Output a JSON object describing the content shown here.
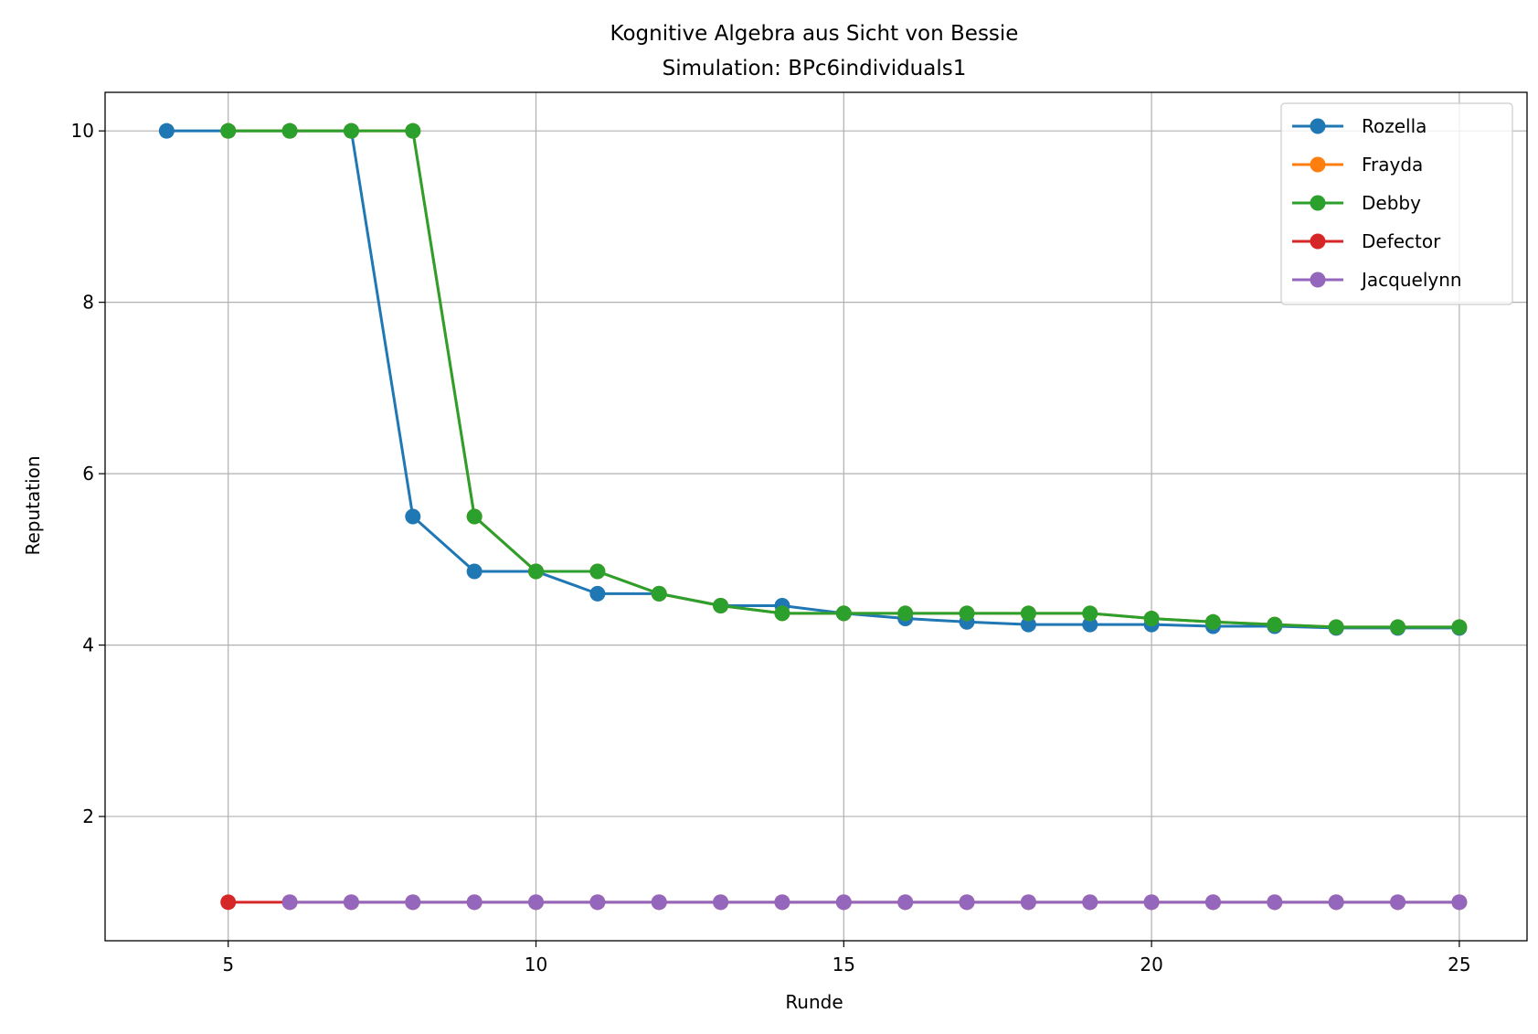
{
  "chart_data": {
    "type": "line",
    "title": "Kognitive Algebra aus Sicht von Bessie",
    "subtitle": "Simulation: BPc6individuals1",
    "xlabel": "Runde",
    "ylabel": "Reputation",
    "xlim": [
      3,
      26.1
    ],
    "ylim": [
      0.55,
      10.45
    ],
    "xticks": [
      5,
      10,
      15,
      20,
      25
    ],
    "yticks": [
      2,
      4,
      6,
      8,
      10
    ],
    "grid": true,
    "legend_position": "top-right",
    "series": [
      {
        "name": "Rozella",
        "color": "#1f77b4",
        "x": [
          4,
          5,
          6,
          7,
          8,
          9,
          10,
          11,
          12,
          13,
          14,
          15,
          16,
          17,
          18,
          19,
          20,
          21,
          22,
          23,
          24,
          25
        ],
        "y": [
          10,
          10,
          10,
          10,
          5.5,
          4.86,
          4.86,
          4.6,
          4.6,
          4.46,
          4.46,
          4.37,
          4.31,
          4.27,
          4.24,
          4.24,
          4.24,
          4.22,
          4.22,
          4.2,
          4.2,
          4.2
        ]
      },
      {
        "name": "Frayda",
        "color": "#ff7f0e",
        "x": [
          5,
          6,
          7,
          8,
          9,
          10,
          11,
          12,
          13,
          14,
          15,
          16,
          17,
          18,
          19,
          20,
          21,
          22,
          23,
          24,
          25
        ],
        "y": [
          10,
          10,
          10,
          10,
          5.5,
          4.86,
          4.86,
          4.6,
          4.46,
          4.37,
          4.37,
          4.37,
          4.37,
          4.37,
          4.37,
          4.31,
          4.27,
          4.24,
          4.21,
          4.21,
          4.21
        ]
      },
      {
        "name": "Debby",
        "color": "#2ca02c",
        "x": [
          5,
          6,
          7,
          8,
          9,
          10,
          11,
          12,
          13,
          14,
          15,
          16,
          17,
          18,
          19,
          20,
          21,
          22,
          23,
          24,
          25
        ],
        "y": [
          10,
          10,
          10,
          10,
          5.5,
          4.86,
          4.86,
          4.6,
          4.46,
          4.37,
          4.37,
          4.37,
          4.37,
          4.37,
          4.37,
          4.31,
          4.27,
          4.24,
          4.21,
          4.21,
          4.21
        ]
      },
      {
        "name": "Defector",
        "color": "#d62728",
        "x": [
          5,
          6,
          7,
          8,
          9,
          10,
          11,
          12,
          13,
          14,
          15,
          16,
          17,
          18,
          19,
          20,
          21,
          22,
          23,
          24,
          25
        ],
        "y": [
          1,
          1,
          1,
          1,
          1,
          1,
          1,
          1,
          1,
          1,
          1,
          1,
          1,
          1,
          1,
          1,
          1,
          1,
          1,
          1,
          1
        ]
      },
      {
        "name": "Jacquelynn",
        "color": "#9467bd",
        "x": [
          6,
          7,
          8,
          9,
          10,
          11,
          12,
          13,
          14,
          15,
          16,
          17,
          18,
          19,
          20,
          21,
          22,
          23,
          24,
          25
        ],
        "y": [
          1,
          1,
          1,
          1,
          1,
          1,
          1,
          1,
          1,
          1,
          1,
          1,
          1,
          1,
          1,
          1,
          1,
          1,
          1,
          1
        ]
      }
    ]
  }
}
